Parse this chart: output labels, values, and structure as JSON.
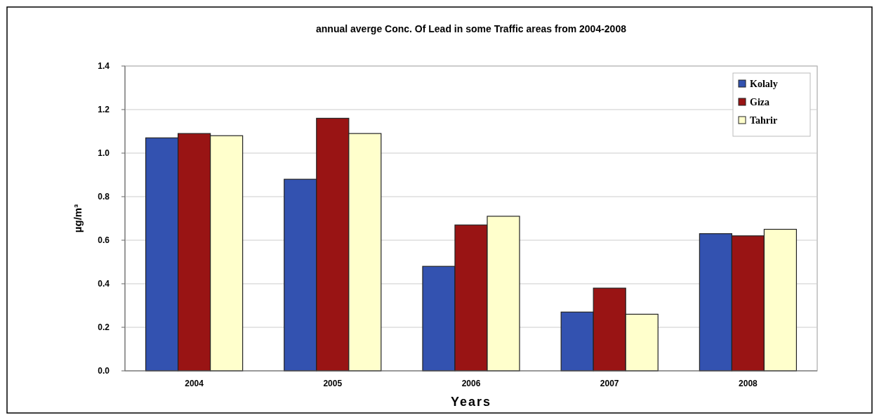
{
  "chart_data": {
    "type": "bar",
    "title": "annual averge Conc. Of Lead in some Traffic areas from 2004-2008",
    "xlabel": "Years",
    "ylabel": "µg/m³",
    "categories": [
      "2004",
      "2005",
      "2006",
      "2007",
      "2008"
    ],
    "series": [
      {
        "name": "Kolaly",
        "color": "#3352b0",
        "values": [
          1.07,
          0.88,
          0.48,
          0.27,
          0.63
        ]
      },
      {
        "name": "Giza",
        "color": "#991414",
        "values": [
          1.09,
          1.16,
          0.67,
          0.38,
          0.62
        ]
      },
      {
        "name": "Tahrir",
        "color": "#ffffcc",
        "values": [
          1.08,
          1.09,
          0.71,
          0.26,
          0.65
        ]
      }
    ],
    "ylim": [
      0,
      1.4
    ],
    "yticks": [
      {
        "value": 0,
        "label": "0.0"
      },
      {
        "value": 0.2,
        "label": "0.2"
      },
      {
        "value": 0.4,
        "label": "0.4"
      },
      {
        "value": 0.6,
        "label": "0.6"
      },
      {
        "value": 0.8,
        "label": "0.8"
      },
      {
        "value": 1,
        "label": "1.0"
      },
      {
        "value": 1.2,
        "label": "1.2"
      },
      {
        "value": 1.4,
        "label": "1.4"
      }
    ],
    "grid": "y",
    "legend": "top right"
  }
}
